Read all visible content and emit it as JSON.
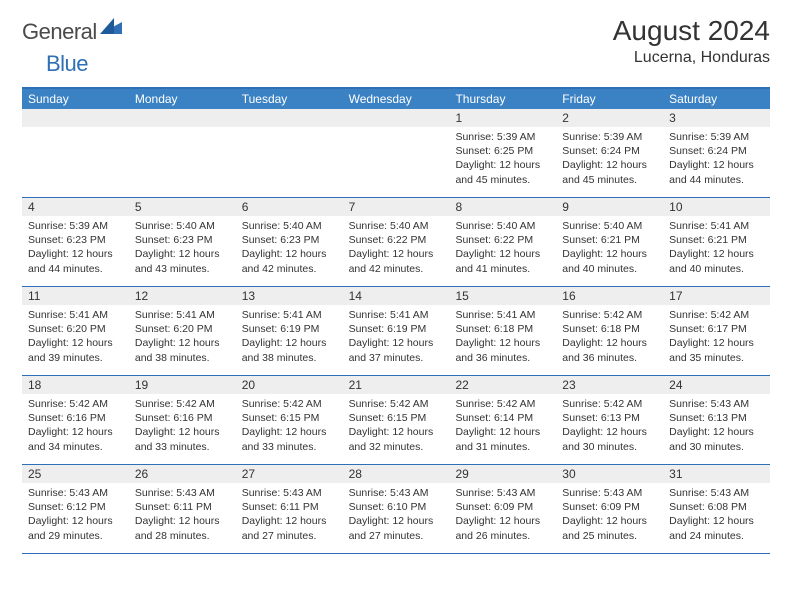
{
  "logo": {
    "general": "General",
    "blue": "Blue"
  },
  "title": "August 2024",
  "location": "Lucerna, Honduras",
  "weekdays": [
    "Sunday",
    "Monday",
    "Tuesday",
    "Wednesday",
    "Thursday",
    "Friday",
    "Saturday"
  ],
  "colors": {
    "header_bar": "#3b82c4",
    "border": "#2e6fb5",
    "daynum_bg": "#eeeeee",
    "text": "#333333",
    "logo_gray": "#4a4a4a",
    "logo_blue": "#2e6fb5"
  },
  "weeks": [
    [
      {
        "n": "",
        "sr": "",
        "ss": "",
        "dl": ""
      },
      {
        "n": "",
        "sr": "",
        "ss": "",
        "dl": ""
      },
      {
        "n": "",
        "sr": "",
        "ss": "",
        "dl": ""
      },
      {
        "n": "",
        "sr": "",
        "ss": "",
        "dl": ""
      },
      {
        "n": "1",
        "sr": "Sunrise: 5:39 AM",
        "ss": "Sunset: 6:25 PM",
        "dl": "Daylight: 12 hours and 45 minutes."
      },
      {
        "n": "2",
        "sr": "Sunrise: 5:39 AM",
        "ss": "Sunset: 6:24 PM",
        "dl": "Daylight: 12 hours and 45 minutes."
      },
      {
        "n": "3",
        "sr": "Sunrise: 5:39 AM",
        "ss": "Sunset: 6:24 PM",
        "dl": "Daylight: 12 hours and 44 minutes."
      }
    ],
    [
      {
        "n": "4",
        "sr": "Sunrise: 5:39 AM",
        "ss": "Sunset: 6:23 PM",
        "dl": "Daylight: 12 hours and 44 minutes."
      },
      {
        "n": "5",
        "sr": "Sunrise: 5:40 AM",
        "ss": "Sunset: 6:23 PM",
        "dl": "Daylight: 12 hours and 43 minutes."
      },
      {
        "n": "6",
        "sr": "Sunrise: 5:40 AM",
        "ss": "Sunset: 6:23 PM",
        "dl": "Daylight: 12 hours and 42 minutes."
      },
      {
        "n": "7",
        "sr": "Sunrise: 5:40 AM",
        "ss": "Sunset: 6:22 PM",
        "dl": "Daylight: 12 hours and 42 minutes."
      },
      {
        "n": "8",
        "sr": "Sunrise: 5:40 AM",
        "ss": "Sunset: 6:22 PM",
        "dl": "Daylight: 12 hours and 41 minutes."
      },
      {
        "n": "9",
        "sr": "Sunrise: 5:40 AM",
        "ss": "Sunset: 6:21 PM",
        "dl": "Daylight: 12 hours and 40 minutes."
      },
      {
        "n": "10",
        "sr": "Sunrise: 5:41 AM",
        "ss": "Sunset: 6:21 PM",
        "dl": "Daylight: 12 hours and 40 minutes."
      }
    ],
    [
      {
        "n": "11",
        "sr": "Sunrise: 5:41 AM",
        "ss": "Sunset: 6:20 PM",
        "dl": "Daylight: 12 hours and 39 minutes."
      },
      {
        "n": "12",
        "sr": "Sunrise: 5:41 AM",
        "ss": "Sunset: 6:20 PM",
        "dl": "Daylight: 12 hours and 38 minutes."
      },
      {
        "n": "13",
        "sr": "Sunrise: 5:41 AM",
        "ss": "Sunset: 6:19 PM",
        "dl": "Daylight: 12 hours and 38 minutes."
      },
      {
        "n": "14",
        "sr": "Sunrise: 5:41 AM",
        "ss": "Sunset: 6:19 PM",
        "dl": "Daylight: 12 hours and 37 minutes."
      },
      {
        "n": "15",
        "sr": "Sunrise: 5:41 AM",
        "ss": "Sunset: 6:18 PM",
        "dl": "Daylight: 12 hours and 36 minutes."
      },
      {
        "n": "16",
        "sr": "Sunrise: 5:42 AM",
        "ss": "Sunset: 6:18 PM",
        "dl": "Daylight: 12 hours and 36 minutes."
      },
      {
        "n": "17",
        "sr": "Sunrise: 5:42 AM",
        "ss": "Sunset: 6:17 PM",
        "dl": "Daylight: 12 hours and 35 minutes."
      }
    ],
    [
      {
        "n": "18",
        "sr": "Sunrise: 5:42 AM",
        "ss": "Sunset: 6:16 PM",
        "dl": "Daylight: 12 hours and 34 minutes."
      },
      {
        "n": "19",
        "sr": "Sunrise: 5:42 AM",
        "ss": "Sunset: 6:16 PM",
        "dl": "Daylight: 12 hours and 33 minutes."
      },
      {
        "n": "20",
        "sr": "Sunrise: 5:42 AM",
        "ss": "Sunset: 6:15 PM",
        "dl": "Daylight: 12 hours and 33 minutes."
      },
      {
        "n": "21",
        "sr": "Sunrise: 5:42 AM",
        "ss": "Sunset: 6:15 PM",
        "dl": "Daylight: 12 hours and 32 minutes."
      },
      {
        "n": "22",
        "sr": "Sunrise: 5:42 AM",
        "ss": "Sunset: 6:14 PM",
        "dl": "Daylight: 12 hours and 31 minutes."
      },
      {
        "n": "23",
        "sr": "Sunrise: 5:42 AM",
        "ss": "Sunset: 6:13 PM",
        "dl": "Daylight: 12 hours and 30 minutes."
      },
      {
        "n": "24",
        "sr": "Sunrise: 5:43 AM",
        "ss": "Sunset: 6:13 PM",
        "dl": "Daylight: 12 hours and 30 minutes."
      }
    ],
    [
      {
        "n": "25",
        "sr": "Sunrise: 5:43 AM",
        "ss": "Sunset: 6:12 PM",
        "dl": "Daylight: 12 hours and 29 minutes."
      },
      {
        "n": "26",
        "sr": "Sunrise: 5:43 AM",
        "ss": "Sunset: 6:11 PM",
        "dl": "Daylight: 12 hours and 28 minutes."
      },
      {
        "n": "27",
        "sr": "Sunrise: 5:43 AM",
        "ss": "Sunset: 6:11 PM",
        "dl": "Daylight: 12 hours and 27 minutes."
      },
      {
        "n": "28",
        "sr": "Sunrise: 5:43 AM",
        "ss": "Sunset: 6:10 PM",
        "dl": "Daylight: 12 hours and 27 minutes."
      },
      {
        "n": "29",
        "sr": "Sunrise: 5:43 AM",
        "ss": "Sunset: 6:09 PM",
        "dl": "Daylight: 12 hours and 26 minutes."
      },
      {
        "n": "30",
        "sr": "Sunrise: 5:43 AM",
        "ss": "Sunset: 6:09 PM",
        "dl": "Daylight: 12 hours and 25 minutes."
      },
      {
        "n": "31",
        "sr": "Sunrise: 5:43 AM",
        "ss": "Sunset: 6:08 PM",
        "dl": "Daylight: 12 hours and 24 minutes."
      }
    ]
  ]
}
